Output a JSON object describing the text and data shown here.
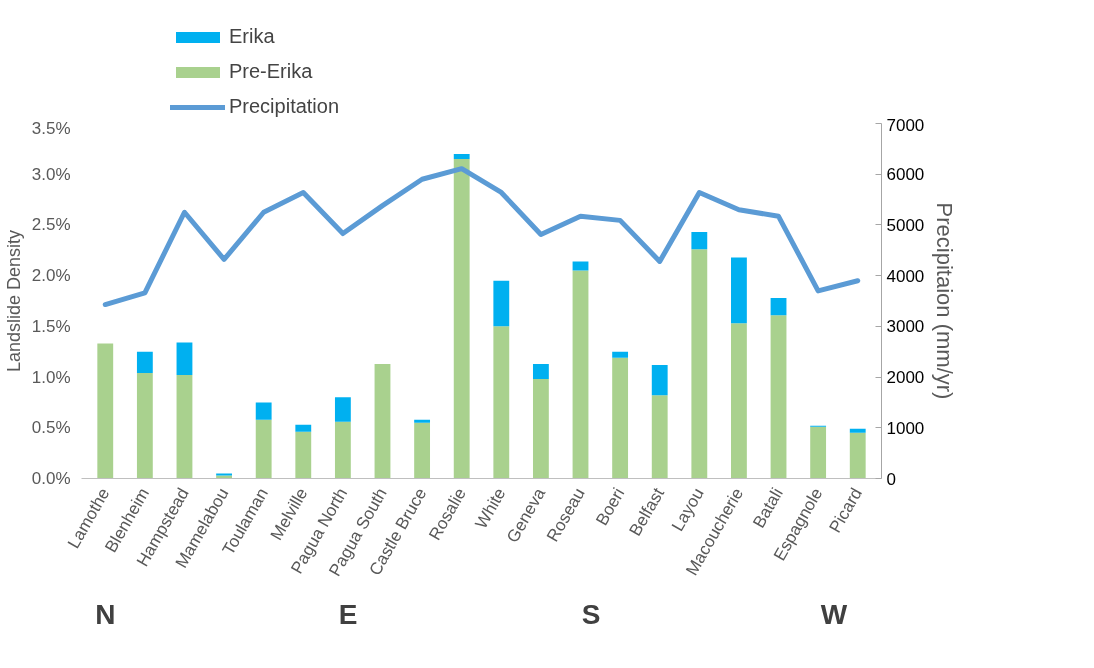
{
  "chart_data": {
    "type": "bar",
    "stacked": true,
    "categories": [
      "Lamothe",
      "Blenheim",
      "Hampstead",
      "Mamelabou",
      "Toulaman",
      "Melville",
      "Pagua North",
      "Pagua South",
      "Castle Bruce",
      "Rosalie",
      "White",
      "Geneva",
      "Roseau",
      "Boeri",
      "Belfast",
      "Layou",
      "Macoucherie",
      "Batali",
      "Espagnole",
      "Picard"
    ],
    "series": [
      {
        "name": "Pre-Erika",
        "color": "#a9d18e",
        "values": [
          1.33,
          1.04,
          1.02,
          0.03,
          0.58,
          0.46,
          0.56,
          1.13,
          0.55,
          3.15,
          1.5,
          0.98,
          2.05,
          1.19,
          0.82,
          2.26,
          1.53,
          1.61,
          0.51,
          0.45
        ]
      },
      {
        "name": "Erika",
        "color": "#00b0f0",
        "values": [
          0,
          0.21,
          0.32,
          0.02,
          0.17,
          0.07,
          0.24,
          0,
          0.03,
          0.05,
          0.45,
          0.15,
          0.09,
          0.06,
          0.3,
          0.17,
          0.65,
          0.17,
          0.01,
          0.04
        ]
      },
      {
        "name": "Precipitation",
        "type": "line",
        "axis": "y2",
        "color": "#5b9bd5",
        "values": [
          3430,
          3660,
          5250,
          4320,
          5250,
          5640,
          4830,
          5380,
          5900,
          6110,
          5640,
          4810,
          5170,
          5090,
          4280,
          5640,
          5300,
          5170,
          3700,
          3900
        ]
      }
    ],
    "ylabel": "Landslide Density",
    "y2label": "Precipitaion (mm/yr)",
    "ylim": [
      0,
      3.5
    ],
    "yticks": [
      {
        "value": 0,
        "label": "0.0%"
      },
      {
        "value": 0.5,
        "label": "0.5%"
      },
      {
        "value": 1,
        "label": "1.0%"
      },
      {
        "value": 1.5,
        "label": "1.5%"
      },
      {
        "value": 2,
        "label": "2.0%"
      },
      {
        "value": 2.5,
        "label": "2.5%"
      },
      {
        "value": 3,
        "label": "3.0%"
      },
      {
        "value": 3.5,
        "label": "3.5%"
      }
    ],
    "y2lim": [
      0,
      7000
    ],
    "y2ticks": [
      0,
      1000,
      2000,
      3000,
      4000,
      5000,
      6000,
      7000
    ],
    "annotations": [
      "N",
      "E",
      "S",
      "W"
    ],
    "legend": "top",
    "grid": false
  }
}
